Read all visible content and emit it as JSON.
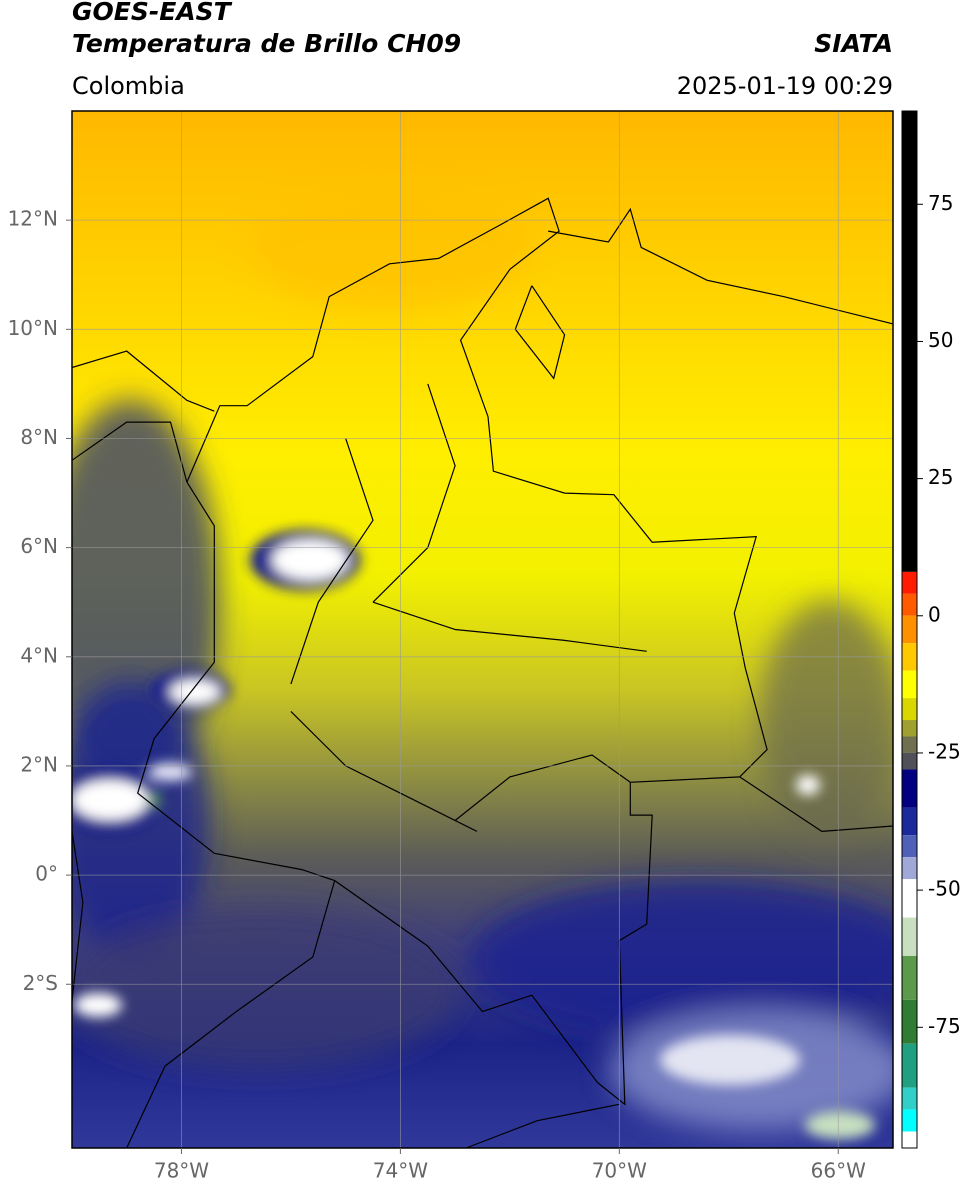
{
  "header": {
    "title": "GOES-EAST",
    "subtitle": "Temperatura de Brillo CH09",
    "source": "SIATA",
    "region": "Colombia",
    "timestamp": "2025-01-19 00:29"
  },
  "map": {
    "lonlim": [
      -80,
      -65
    ],
    "latlim": [
      -5,
      14
    ],
    "grid": true,
    "lonticks": [
      {
        "value": -78,
        "label": "78°W"
      },
      {
        "value": -74,
        "label": "74°W"
      },
      {
        "value": -70,
        "label": "70°W"
      },
      {
        "value": -66,
        "label": "66°W"
      }
    ],
    "latticks": [
      {
        "value": 12,
        "label": "12°N"
      },
      {
        "value": 10,
        "label": "10°N"
      },
      {
        "value": 8,
        "label": "8°N"
      },
      {
        "value": 6,
        "label": "6°N"
      },
      {
        "value": 4,
        "label": "4°N"
      },
      {
        "value": 2,
        "label": "2°N"
      },
      {
        "value": 0,
        "label": "0°"
      },
      {
        "value": -2,
        "label": "2°S"
      }
    ]
  },
  "colorbar": {
    "lim": [
      -97,
      92
    ],
    "ticks": [
      75,
      50,
      25,
      0,
      -25,
      -50,
      -75
    ],
    "stops": [
      {
        "value": 92,
        "color": "#000000"
      },
      {
        "value": 8,
        "color": "#ff1a00"
      },
      {
        "value": 4,
        "color": "#ff5a00"
      },
      {
        "value": 0,
        "color": "#ff9000"
      },
      {
        "value": -5,
        "color": "#ffc800"
      },
      {
        "value": -10,
        "color": "#ffff00"
      },
      {
        "value": -15,
        "color": "#d8d800"
      },
      {
        "value": -19,
        "color": "#a0a030"
      },
      {
        "value": -22,
        "color": "#707050"
      },
      {
        "value": -25,
        "color": "#505058"
      },
      {
        "value": -28,
        "color": "#000080"
      },
      {
        "value": -35,
        "color": "#1a2a9a"
      },
      {
        "value": -40,
        "color": "#5060b8"
      },
      {
        "value": -44,
        "color": "#a0a8d8"
      },
      {
        "value": -48,
        "color": "#ffffff"
      },
      {
        "value": -55,
        "color": "#c8e0c0"
      },
      {
        "value": -62,
        "color": "#5a9a4a"
      },
      {
        "value": -70,
        "color": "#2e7d32"
      },
      {
        "value": -78,
        "color": "#20a080"
      },
      {
        "value": -86,
        "color": "#30d0c8"
      },
      {
        "value": -90,
        "color": "#00ffff"
      },
      {
        "value": -94,
        "color": "#ffffff"
      }
    ]
  }
}
